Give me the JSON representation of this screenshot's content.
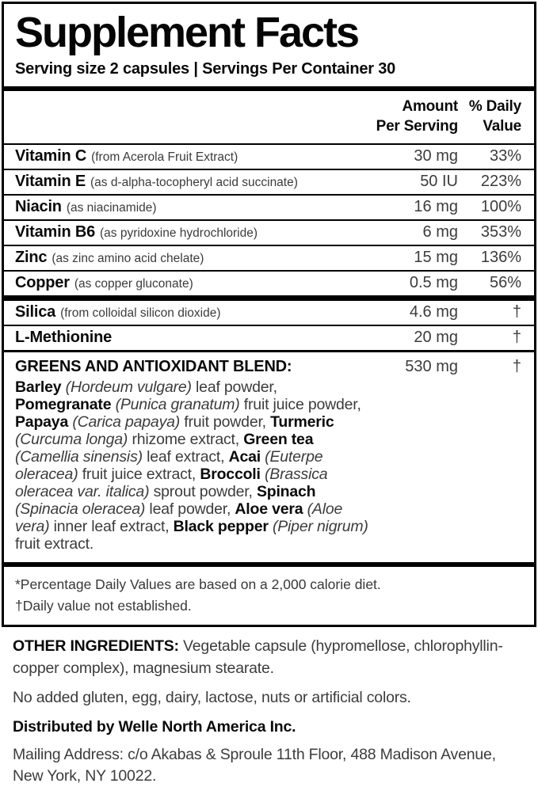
{
  "panel": {
    "title": "Supplement Facts",
    "serving_line": "Serving size 2 capsules | Servings Per Container 30",
    "header": {
      "amount": "Amount\nPer Serving",
      "daily_value": "% Daily\nValue"
    },
    "nutrients": [
      {
        "name": "Vitamin C",
        "detail": "(from Acerola Fruit Extract)",
        "amount": "30 mg",
        "dv": "33%"
      },
      {
        "name": "Vitamin E",
        "detail": "(as d-alpha-tocopheryl acid succinate)",
        "amount": "50 IU",
        "dv": "223%"
      },
      {
        "name": "Niacin",
        "detail": "(as niacinamide)",
        "amount": "16 mg",
        "dv": "100%"
      },
      {
        "name": "Vitamin B6",
        "detail": "(as pyridoxine hydrochloride)",
        "amount": "6 mg",
        "dv": "353%"
      },
      {
        "name": "Zinc",
        "detail": "(as zinc amino acid chelate)",
        "amount": "15 mg",
        "dv": "136%"
      },
      {
        "name": "Copper",
        "detail": "(as copper gluconate)",
        "amount": "0.5 mg",
        "dv": "56%"
      }
    ],
    "secondary": [
      {
        "name": "Silica",
        "detail": "(from colloidal silicon dioxide)",
        "amount": "4.6 mg",
        "dv": "†"
      },
      {
        "name": "L-Methionine",
        "detail": "",
        "amount": "20 mg",
        "dv": "†"
      }
    ],
    "blend": {
      "title": "GREENS AND ANTIOXIDANT BLEND:",
      "amount": "530 mg",
      "dv": "†",
      "ingredients": [
        {
          "name": "Barley",
          "sci": "(Hordeum vulgare)",
          "rest": " leaf powder, "
        },
        {
          "name": "Pomegranate",
          "sci": "(Punica granatum)",
          "rest": " fruit juice powder, "
        },
        {
          "name": "Papaya",
          "sci": "(Carica papaya)",
          "rest": " fruit powder, "
        },
        {
          "name": "Turmeric",
          "sci": "(Curcuma longa)",
          "rest": " rhizome extract, "
        },
        {
          "name": "Green tea",
          "sci": "(Camellia sinensis)",
          "rest": " leaf extract, "
        },
        {
          "name": "Acai",
          "sci": "(Euterpe oleracea)",
          "rest": " fruit juice extract, "
        },
        {
          "name": "Broccoli",
          "sci": "(Brassica oleracea var. italica)",
          "rest": " sprout powder, "
        },
        {
          "name": "Spinach",
          "sci": "(Spinacia oleracea)",
          "rest": " leaf powder, "
        },
        {
          "name": "Aloe vera",
          "sci": "(Aloe vera)",
          "rest": " inner leaf extract, "
        },
        {
          "name": "Black pepper",
          "sci": "(Piper nigrum)",
          "rest": " fruit extract."
        }
      ]
    },
    "footnotes": [
      "*Percentage Daily Values are based on a 2,000 calorie diet.",
      "†Daily value not established."
    ]
  },
  "below": {
    "other_ingredients_label": "OTHER INGREDIENTS:",
    "other_ingredients_text": "Vegetable capsule (hypromellose, chlorophyllin-copper complex), magnesium stearate.",
    "allergen_line": "No added gluten, egg, dairy, lactose, nuts or artificial colors.",
    "distributor_line": "Distributed by Welle North America Inc.",
    "mailing_line": "Mailing Address: c/o Akabas & Sproule 11th Floor, 488 Madison Avenue, New York, NY 10022."
  },
  "colors": {
    "ink": "#000000",
    "light_ink": "#3c3c3c",
    "background": "#ffffff"
  }
}
